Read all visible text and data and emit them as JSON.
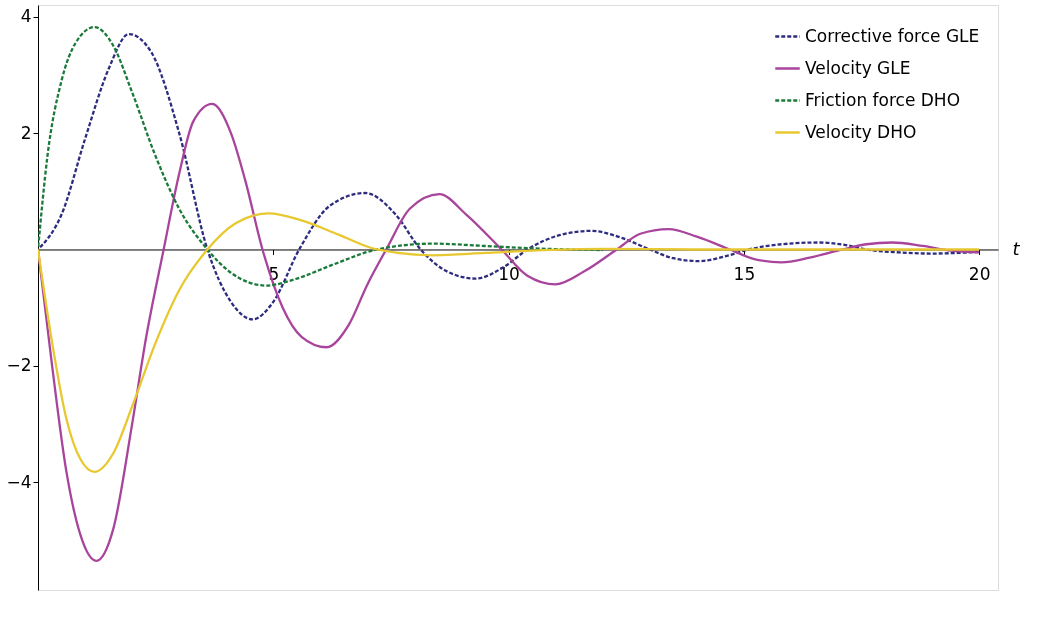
{
  "chart_data": {
    "type": "line",
    "xlabel": "t",
    "xlim": [
      0,
      20.4
    ],
    "ylim": [
      -5.85,
      4.2
    ],
    "xticks": [
      5,
      10,
      15,
      20
    ],
    "yticks": [
      -4,
      -2,
      2,
      4
    ],
    "grid": false,
    "legend": "top right",
    "marker": "none",
    "series": [
      {
        "name": "Corrective force GLE",
        "color": "#2e2c7e",
        "line_style": "dashed",
        "x": [
          0,
          0.5,
          1,
          1.5,
          1.93,
          2.4,
          3,
          3.6,
          4.1,
          4.56,
          5,
          5.55,
          6.2,
          6.95,
          7.6,
          8.13,
          8.7,
          9.3,
          9.9,
          10.4,
          11.1,
          11.75,
          12.4,
          13,
          13.5,
          14.05,
          14.6,
          15.1,
          15.8,
          16.6,
          17.2,
          17.6,
          18.3,
          19,
          20
        ],
        "values": [
          0,
          0.6,
          1.9,
          3.1,
          3.7,
          3.4,
          2.0,
          0,
          -0.9,
          -1.2,
          -0.9,
          0,
          0.75,
          0.97,
          0.6,
          0,
          -0.38,
          -0.5,
          -0.3,
          0,
          0.25,
          0.32,
          0.2,
          0,
          -0.15,
          -0.2,
          -0.12,
          0,
          0.09,
          0.12,
          0.07,
          0,
          -0.05,
          -0.07,
          -0.04
        ]
      },
      {
        "name": "Velocity GLE",
        "color": "#a8449c",
        "line_style": "solid",
        "x": [
          0,
          0.3,
          0.6,
          0.9,
          1.24,
          1.6,
          2.0,
          2.3,
          2.67,
          3.0,
          3.3,
          3.7,
          4.1,
          4.4,
          4.77,
          5.2,
          5.6,
          6.13,
          6.6,
          7.0,
          7.4,
          7.9,
          8.53,
          9.1,
          9.85,
          10.4,
          11.0,
          11.6,
          12.3,
          12.8,
          13.4,
          14.0,
          14.7,
          15.2,
          15.8,
          16.4,
          17.1,
          17.6,
          18.15,
          18.8,
          19.4,
          20
        ],
        "values": [
          0,
          -2.0,
          -3.8,
          -4.9,
          -5.35,
          -4.8,
          -3.0,
          -1.5,
          0,
          1.3,
          2.2,
          2.5,
          2.0,
          1.2,
          0,
          -1.0,
          -1.5,
          -1.68,
          -1.3,
          -0.6,
          0,
          0.7,
          0.95,
          0.6,
          0,
          -0.45,
          -0.6,
          -0.38,
          0,
          0.27,
          0.35,
          0.22,
          0,
          -0.16,
          -0.22,
          -0.14,
          0,
          0.09,
          0.12,
          0.06,
          -0.02,
          -0.05
        ]
      },
      {
        "name": "Friction force DHO",
        "color": "#1a7a3a",
        "line_style": "dashed",
        "x": [
          0,
          0.2,
          0.5,
          0.8,
          1.2,
          1.6,
          2.0,
          2.5,
          3.0,
          3.6,
          4.1,
          4.85,
          5.5,
          6.3,
          7.2,
          8.4,
          9.5,
          10.5,
          12
        ],
        "values": [
          0,
          1.6,
          2.9,
          3.55,
          3.82,
          3.5,
          2.7,
          1.6,
          0.7,
          0,
          -0.4,
          -0.62,
          -0.5,
          -0.25,
          0,
          0.1,
          0.06,
          0.02,
          -0.01
        ]
      },
      {
        "name": "Velocity DHO",
        "color": "#e8c830",
        "line_style": "solid",
        "x": [
          0,
          0.3,
          0.6,
          0.9,
          1.2,
          1.6,
          2.0,
          2.5,
          3.0,
          3.6,
          4.2,
          4.9,
          5.6,
          6.4,
          7.2,
          8.4,
          9.5,
          10.5,
          12,
          14,
          20
        ],
        "values": [
          0,
          -1.6,
          -2.9,
          -3.6,
          -3.82,
          -3.5,
          -2.7,
          -1.6,
          -0.7,
          0,
          0.45,
          0.62,
          0.5,
          0.25,
          0,
          -0.1,
          -0.06,
          -0.02,
          0.01,
          0,
          0
        ]
      }
    ]
  }
}
